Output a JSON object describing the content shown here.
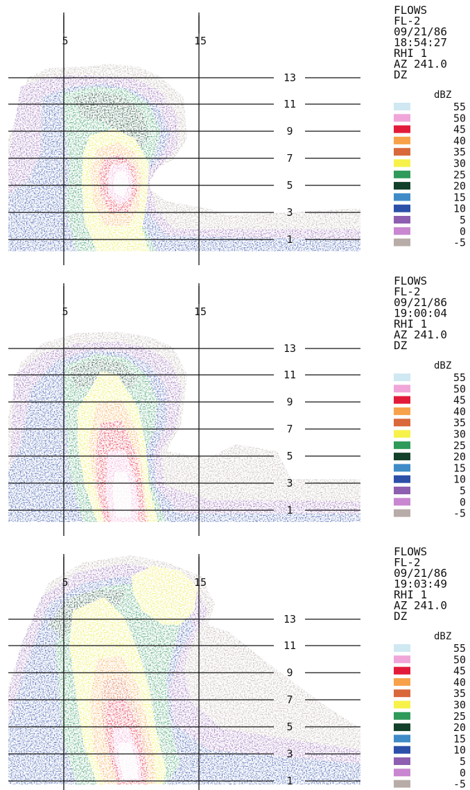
{
  "chart_data": [
    {
      "type": "heatmap",
      "header": {
        "line1": "FLOWS",
        "line2": "FL-2",
        "line3": "09/21/86",
        "line4": "18:54:27",
        "line5": "RHI      1",
        "line6": "AZ 241.0",
        "line7": "DZ"
      },
      "x_ticks": [
        "5",
        "15"
      ],
      "y_ticks": [
        "13",
        "11",
        "9",
        "7",
        "5",
        "3",
        "1"
      ],
      "legend_title": "dBZ",
      "legend_levels": [
        "55",
        "50",
        "45",
        "40",
        "35",
        "30",
        "25",
        "20",
        "15",
        "10",
        "5",
        "0",
        "-5"
      ]
    },
    {
      "type": "heatmap",
      "header": {
        "line1": "FLOWS",
        "line2": "FL-2",
        "line3": "09/21/86",
        "line4": "19:00:04",
        "line5": "RHI      1",
        "line6": "AZ 241.0",
        "line7": "DZ"
      },
      "x_ticks": [
        "5",
        "15"
      ],
      "y_ticks": [
        "13",
        "11",
        "9",
        "7",
        "5",
        "3",
        "1"
      ],
      "legend_title": "dBZ",
      "legend_levels": [
        "55",
        "50",
        "45",
        "40",
        "35",
        "30",
        "25",
        "20",
        "15",
        "10",
        "5",
        "0",
        "-5"
      ]
    },
    {
      "type": "heatmap",
      "header": {
        "line1": "FLOWS",
        "line2": "FL-2",
        "line3": "09/21/86",
        "line4": "19:03:49",
        "line5": "RHI      1",
        "line6": "AZ 241.0",
        "line7": "DZ"
      },
      "x_ticks": [
        "5",
        "15"
      ],
      "y_ticks": [
        "13",
        "11",
        "9",
        "7",
        "5",
        "3",
        "1"
      ],
      "legend_title": "dBZ",
      "legend_levels": [
        "55",
        "50",
        "45",
        "40",
        "35",
        "30",
        "25",
        "20",
        "15",
        "10",
        "5",
        "0",
        "-5"
      ]
    }
  ],
  "legend_colors": [
    "#cfe8f2",
    "#f0a6d8",
    "#e21b3a",
    "#f7a24a",
    "#d9683a",
    "#f6f24a",
    "#2f9a5a",
    "#12402a",
    "#3f8bc8",
    "#2c4fa8",
    "#8e5fb0",
    "#c887d0",
    "#b8aca8"
  ]
}
